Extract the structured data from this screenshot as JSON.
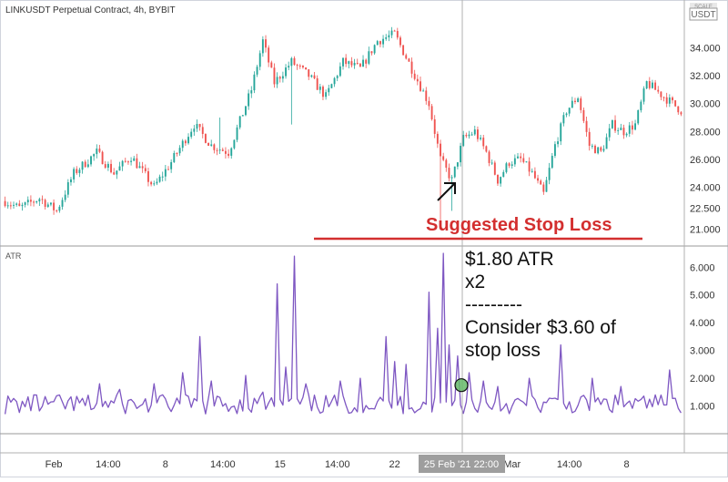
{
  "header": {
    "symbol_title": "LINKUSDT Perpetual Contract, 4h, BYBIT",
    "currency_badge": "USDT",
    "scale_badge": "SCALE"
  },
  "atr_pane": {
    "label": "ATR"
  },
  "annotations": {
    "stop_loss_label": "Suggested Stop Loss",
    "note_line1": "$1.80 ATR",
    "note_line2": "x2",
    "note_line3": "---------",
    "note_line4": "Consider $3.60 of",
    "note_line5": "stop loss"
  },
  "crosshair_time": "25 Feb '21   22:00",
  "colors": {
    "up": "#26a69a",
    "down": "#ef5350",
    "atr_line": "#7e57c2",
    "stop_line": "#d32f2f",
    "marker": "#66bb6a",
    "crosshair_bg": "#9e9e9e"
  },
  "chart_data": [
    {
      "type": "candlestick",
      "title": "LINKUSDT Perpetual Contract, 4h, BYBIT",
      "y_ticks": [
        "21.000",
        "22.500",
        "24.000",
        "26.000",
        "28.000",
        "30.000",
        "32.000",
        "34.000"
      ],
      "y_tick_values": [
        21,
        22.5,
        24,
        26,
        28,
        30,
        32,
        34
      ],
      "ylim": [
        20.3,
        36.0
      ],
      "x_ticks": [
        "Feb",
        "14:00",
        "8",
        "14:00",
        "15",
        "14:00",
        "22",
        "",
        "Mar",
        "14:00",
        "8"
      ],
      "candles": {
        "start_price": 23.0,
        "close_path": [
          [
            0,
            23.0
          ],
          [
            5,
            22.5
          ],
          [
            12,
            23.2
          ],
          [
            18,
            22.3
          ],
          [
            24,
            25.0
          ],
          [
            32,
            26.5
          ],
          [
            38,
            25.0
          ],
          [
            44,
            26.2
          ],
          [
            52,
            24.0
          ],
          [
            58,
            25.8
          ],
          [
            66,
            28.5
          ],
          [
            72,
            27.0
          ],
          [
            78,
            26.5
          ],
          [
            86,
            31.0
          ],
          [
            90,
            34.5
          ],
          [
            94,
            31.5
          ],
          [
            100,
            33.0
          ],
          [
            106,
            32.0
          ],
          [
            112,
            30.5
          ],
          [
            118,
            33.0
          ],
          [
            124,
            32.5
          ],
          [
            130,
            34.5
          ],
          [
            136,
            35.0
          ],
          [
            142,
            32.5
          ],
          [
            148,
            30.0
          ],
          [
            152,
            26.0
          ],
          [
            156,
            24.5
          ],
          [
            160,
            27.5
          ],
          [
            164,
            28.0
          ],
          [
            168,
            26.5
          ],
          [
            172,
            24.5
          ],
          [
            176,
            25.8
          ],
          [
            180,
            26.0
          ],
          [
            184,
            25.0
          ],
          [
            188,
            23.5
          ],
          [
            192,
            27.0
          ],
          [
            196,
            29.5
          ],
          [
            200,
            30.5
          ],
          [
            204,
            27.0
          ],
          [
            208,
            26.5
          ],
          [
            212,
            28.5
          ],
          [
            216,
            28.0
          ],
          [
            220,
            28.5
          ],
          [
            224,
            31.5
          ],
          [
            230,
            30.5
          ],
          [
            236,
            29.5
          ]
        ],
        "count": 237
      },
      "stop_loss_level": 20.6
    },
    {
      "type": "line",
      "name": "ATR",
      "y_ticks": [
        "1.000",
        "2.000",
        "3.000",
        "4.000",
        "5.000",
        "6.000"
      ],
      "y_tick_values": [
        1,
        2,
        3,
        4,
        5,
        6
      ],
      "ylim": [
        0,
        6.6
      ],
      "base": 0.95,
      "spikes": [
        [
          10,
          1.4
        ],
        [
          33,
          1.8
        ],
        [
          40,
          1.6
        ],
        [
          52,
          1.8
        ],
        [
          62,
          2.2
        ],
        [
          68,
          3.5
        ],
        [
          72,
          1.9
        ],
        [
          84,
          2.1
        ],
        [
          90,
          1.5
        ],
        [
          95,
          5.4
        ],
        [
          98,
          2.4
        ],
        [
          101,
          6.4
        ],
        [
          105,
          1.8
        ],
        [
          117,
          1.9
        ],
        [
          124,
          2.0
        ],
        [
          133,
          3.5
        ],
        [
          136,
          2.6
        ],
        [
          140,
          2.5
        ],
        [
          148,
          5.1
        ],
        [
          151,
          3.8
        ],
        [
          153,
          6.5
        ],
        [
          155,
          3.2
        ],
        [
          158,
          2.8
        ],
        [
          162,
          2.2
        ],
        [
          167,
          1.9
        ],
        [
          172,
          1.7
        ],
        [
          183,
          2.0
        ],
        [
          194,
          3.2
        ],
        [
          205,
          2.0
        ],
        [
          215,
          1.7
        ],
        [
          227,
          1.4
        ],
        [
          232,
          2.3
        ]
      ],
      "highlight": {
        "index": 170,
        "value": 1.75
      }
    }
  ]
}
